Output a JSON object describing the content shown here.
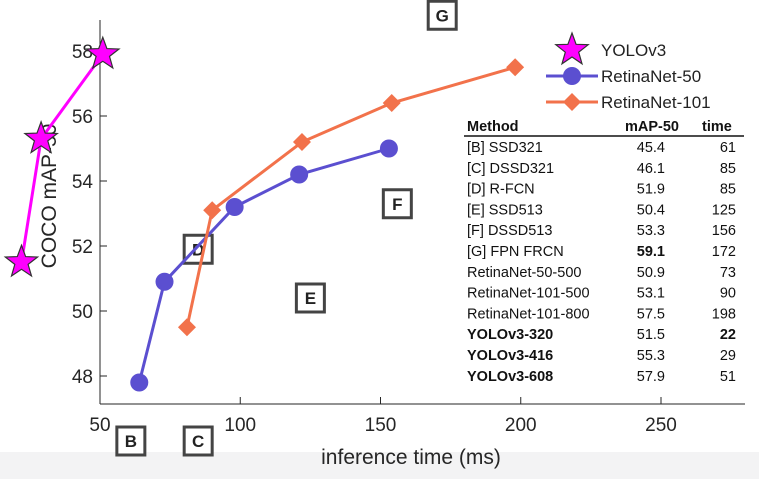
{
  "chart_data": {
    "type": "line",
    "title": "",
    "xlabel": "inference time (ms)",
    "ylabel": "COCO mAP-50",
    "xlim": [
      50,
      280
    ],
    "ylim": [
      47,
      58.5
    ],
    "xticks": [
      50,
      100,
      150,
      200,
      250
    ],
    "yticks": [
      48,
      50,
      52,
      54,
      56,
      58
    ],
    "series": [
      {
        "name": "YOLOv3",
        "color": "#ff00ff",
        "marker": "star",
        "x": [
          22,
          29,
          51
        ],
        "y": [
          51.5,
          55.3,
          57.9
        ]
      },
      {
        "name": "RetinaNet-50",
        "color": "#5b4fd0",
        "marker": "circle",
        "x": [
          64,
          73,
          98,
          121,
          153
        ],
        "y": [
          47.8,
          50.9,
          53.2,
          54.2,
          55.0
        ]
      },
      {
        "name": "RetinaNet-101",
        "color": "#f2724b",
        "marker": "diamond",
        "x": [
          81,
          90,
          122,
          154,
          198
        ],
        "y": [
          49.5,
          53.1,
          55.2,
          56.4,
          57.5
        ]
      }
    ],
    "annotations": [
      {
        "label": "B",
        "x": 61,
        "y": 46.0
      },
      {
        "label": "C",
        "x": 85,
        "y": 46.0
      },
      {
        "label": "D",
        "x": 85,
        "y": 51.9
      },
      {
        "label": "E",
        "x": 125,
        "y": 50.4
      },
      {
        "label": "F",
        "x": 156,
        "y": 53.3
      },
      {
        "label": "G",
        "x": 172,
        "y": 59.1
      }
    ],
    "table": {
      "headers": [
        "Method",
        "mAP-50",
        "time"
      ],
      "rows": [
        {
          "method": "[B] SSD321",
          "map": "45.4",
          "time": "61",
          "bold_method": false,
          "bold_map": false,
          "bold_time": false
        },
        {
          "method": "[C] DSSD321",
          "map": "46.1",
          "time": "85",
          "bold_method": false,
          "bold_map": false,
          "bold_time": false
        },
        {
          "method": "[D] R-FCN",
          "map": "51.9",
          "time": "85",
          "bold_method": false,
          "bold_map": false,
          "bold_time": false
        },
        {
          "method": "[E] SSD513",
          "map": "50.4",
          "time": "125",
          "bold_method": false,
          "bold_map": false,
          "bold_time": false
        },
        {
          "method": "[F] DSSD513",
          "map": "53.3",
          "time": "156",
          "bold_method": false,
          "bold_map": false,
          "bold_time": false
        },
        {
          "method": "[G] FPN FRCN",
          "map": "59.1",
          "time": "172",
          "bold_method": false,
          "bold_map": true,
          "bold_time": false
        },
        {
          "method": "RetinaNet-50-500",
          "map": "50.9",
          "time": "73",
          "bold_method": false,
          "bold_map": false,
          "bold_time": false
        },
        {
          "method": "RetinaNet-101-500",
          "map": "53.1",
          "time": "90",
          "bold_method": false,
          "bold_map": false,
          "bold_time": false
        },
        {
          "method": "RetinaNet-101-800",
          "map": "57.5",
          "time": "198",
          "bold_method": false,
          "bold_map": false,
          "bold_time": false
        },
        {
          "method": "YOLOv3-320",
          "map": "51.5",
          "time": "22",
          "bold_method": true,
          "bold_map": false,
          "bold_time": true
        },
        {
          "method": "YOLOv3-416",
          "map": "55.3",
          "time": "29",
          "bold_method": true,
          "bold_map": false,
          "bold_time": false
        },
        {
          "method": "YOLOv3-608",
          "map": "57.9",
          "time": "51",
          "bold_method": true,
          "bold_map": false,
          "bold_time": false
        }
      ]
    }
  }
}
